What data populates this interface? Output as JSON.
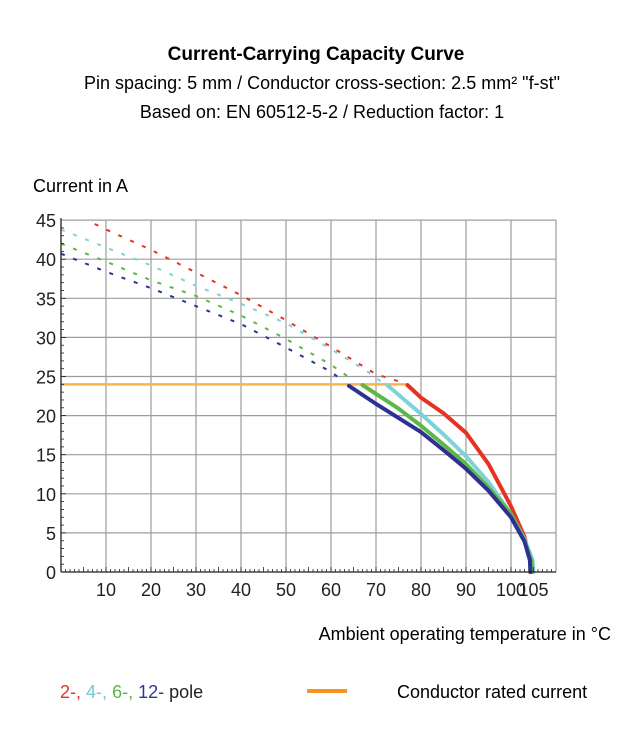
{
  "chart_data": {
    "type": "line",
    "title": "Current-Carrying Capacity Curve",
    "subtitle_lines": [
      "Pin spacing: 5 mm / Conductor cross-section: 2.5 mm² \"f-st\"",
      "Based on: EN 60512-5-2 / Reduction factor: 1"
    ],
    "ylabel": "Current in A",
    "xlabel": "Ambient operating temperature in °C",
    "xlim": [
      0,
      110
    ],
    "ylim": [
      0,
      45
    ],
    "xticks": [
      10,
      20,
      30,
      40,
      50,
      60,
      70,
      80,
      90,
      100,
      105
    ],
    "yticks": [
      0,
      5,
      10,
      15,
      20,
      25,
      30,
      35,
      40,
      45
    ],
    "grid": true,
    "legend_position": "bottom",
    "legend_poles": [
      {
        "label": "2-,",
        "color": "#e53323"
      },
      {
        "label": "4-,",
        "color": "#6fcbd3"
      },
      {
        "label": "6-,",
        "color": "#5bb845"
      },
      {
        "label": "12-",
        "color": "#2b3990"
      }
    ],
    "legend_poles_suffix": "pole",
    "legend_rated": {
      "label": "Conductor rated current",
      "color": "#f7941d"
    },
    "rated_current": {
      "value": 24,
      "x_range": [
        0,
        77
      ],
      "color": "#f9b54a"
    },
    "series": [
      {
        "pole": "2",
        "color": "#e53323",
        "dashed": [
          [
            7.5,
            44.5
          ],
          [
            10,
            43.8
          ],
          [
            20,
            41.2
          ],
          [
            30,
            38.3
          ],
          [
            40,
            35.4
          ],
          [
            50,
            32.2
          ],
          [
            60,
            28.8
          ],
          [
            70,
            25.3
          ],
          [
            76,
            24.2
          ]
        ],
        "solid": [
          [
            77,
            23.9
          ],
          [
            80,
            22.3
          ],
          [
            85,
            20.3
          ],
          [
            90,
            17.8
          ],
          [
            95,
            13.8
          ],
          [
            100,
            8.4
          ],
          [
            103,
            4.5
          ],
          [
            104.3,
            1.5
          ],
          [
            104.5,
            0
          ]
        ]
      },
      {
        "pole": "4",
        "color": "#7dd3d8",
        "dashed": [
          [
            0,
            43.8
          ],
          [
            10,
            41.5
          ],
          [
            20,
            39.2
          ],
          [
            30,
            36.6
          ],
          [
            40,
            34.3
          ],
          [
            50,
            31.8
          ],
          [
            60,
            28.5
          ],
          [
            69,
            25.3
          ],
          [
            71,
            24.4
          ]
        ],
        "solid": [
          [
            72.5,
            23.9
          ],
          [
            80,
            20.2
          ],
          [
            85,
            17.6
          ],
          [
            90,
            14.8
          ],
          [
            95,
            11.5
          ],
          [
            100,
            7.4
          ],
          [
            103,
            4.2
          ],
          [
            104.8,
            1.5
          ],
          [
            105,
            0
          ]
        ]
      },
      {
        "pole": "6",
        "color": "#5bb845",
        "dashed": [
          [
            0,
            42
          ],
          [
            10,
            39.7
          ],
          [
            20,
            37.3
          ],
          [
            30,
            35.3
          ],
          [
            40,
            32.8
          ],
          [
            50,
            29.8
          ],
          [
            60,
            26.5
          ],
          [
            65,
            24.5
          ]
        ],
        "solid": [
          [
            67,
            23.9
          ],
          [
            75,
            20.9
          ],
          [
            80,
            18.7
          ],
          [
            85,
            16.3
          ],
          [
            90,
            13.8
          ],
          [
            95,
            10.8
          ],
          [
            100,
            7.4
          ],
          [
            103,
            4
          ],
          [
            104.5,
            1.5
          ],
          [
            104.6,
            0
          ]
        ]
      },
      {
        "pole": "12",
        "color": "#2e3192",
        "dashed": [
          [
            0,
            40.7
          ],
          [
            10,
            38.4
          ],
          [
            20,
            36.3
          ],
          [
            30,
            34
          ],
          [
            40,
            31.7
          ],
          [
            50,
            28.7
          ],
          [
            60,
            25.6
          ],
          [
            62.5,
            24.5
          ]
        ],
        "solid": [
          [
            64,
            23.8
          ],
          [
            70,
            21.5
          ],
          [
            75,
            19.7
          ],
          [
            80,
            17.9
          ],
          [
            85,
            15.6
          ],
          [
            90,
            13.2
          ],
          [
            95,
            10.4
          ],
          [
            100,
            7.0
          ],
          [
            103,
            3.9
          ],
          [
            104.2,
            1.5
          ],
          [
            104.3,
            0
          ]
        ]
      }
    ]
  }
}
